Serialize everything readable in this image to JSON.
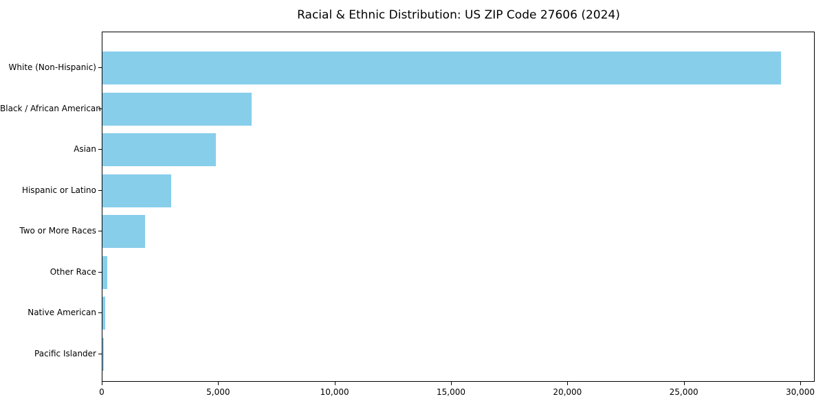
{
  "chart_data": {
    "type": "bar",
    "orientation": "horizontal",
    "title": "Racial & Ethnic Distribution: US ZIP Code 27606 (2024)",
    "categories": [
      "White (Non-Hispanic)",
      "Black / African American",
      "Asian",
      "Hispanic or Latino",
      "Two or More Races",
      "Other Race",
      "Native American",
      "Pacific Islander"
    ],
    "values": [
      29150,
      6400,
      4860,
      2940,
      1820,
      210,
      120,
      60
    ],
    "xlabel": "",
    "ylabel": "",
    "xlim": [
      0,
      30620
    ],
    "xticks": [
      0,
      5000,
      10000,
      15000,
      20000,
      25000,
      30000
    ],
    "xtick_labels": [
      "0",
      "5,000",
      "10,000",
      "15,000",
      "20,000",
      "25,000",
      "30,000"
    ],
    "bar_color": "#87CEEB",
    "grid": false,
    "legend": "none"
  }
}
